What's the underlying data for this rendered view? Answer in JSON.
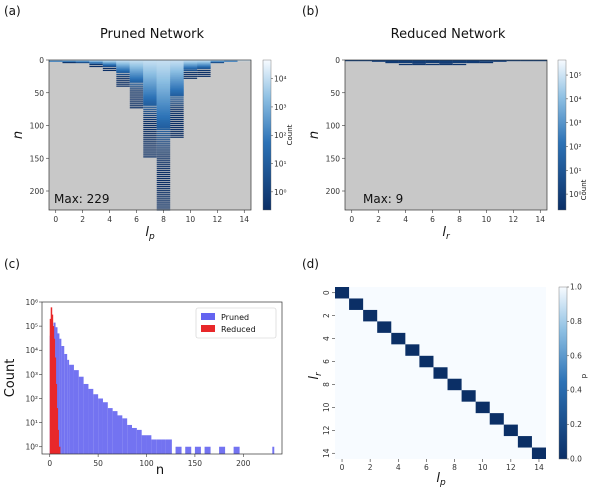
{
  "chart_data": [
    {
      "panel_label": "(a)",
      "type": "heatmap",
      "title": "Pruned Network",
      "xlabel": "l_p",
      "ylabel": "n",
      "xticks": [
        "0",
        "2",
        "4",
        "6",
        "8",
        "10",
        "12",
        "14"
      ],
      "yticks": [
        "0",
        "50",
        "100",
        "150",
        "200"
      ],
      "xlim": [
        -0.5,
        14.5
      ],
      "ylim": [
        229,
        0
      ],
      "annotation": "Max: 229",
      "colorbar_label": "Count",
      "colorbar_ticks": [
        "10⁰",
        "10¹",
        "10²",
        "10³",
        "10⁴"
      ],
      "colorbar_scale": "log",
      "max_n_by_lp": [
        3,
        5,
        6,
        10,
        18,
        40,
        75,
        150,
        229,
        120,
        30,
        25,
        6,
        3,
        2
      ]
    },
    {
      "panel_label": "(b)",
      "type": "heatmap",
      "title": "Reduced Network",
      "xlabel": "l_r",
      "ylabel": "n",
      "xticks": [
        "0",
        "2",
        "4",
        "6",
        "8",
        "10",
        "12",
        "14"
      ],
      "yticks": [
        "0",
        "50",
        "100",
        "150",
        "200"
      ],
      "xlim": [
        -0.5,
        14.5
      ],
      "ylim": [
        229,
        0
      ],
      "annotation": "Max: 9",
      "colorbar_label": "Count",
      "colorbar_ticks": [
        "10⁰",
        "10¹",
        "10²",
        "10³",
        "10⁴",
        "10⁵"
      ],
      "colorbar_scale": "log",
      "max_n_by_lr": [
        1,
        2,
        3,
        6,
        8,
        9,
        8,
        9,
        8,
        6,
        4,
        3,
        2,
        2,
        1
      ]
    },
    {
      "panel_label": "(c)",
      "type": "bar",
      "title": "",
      "xlabel": "n",
      "ylabel": "Count",
      "yscale": "log",
      "xticks": [
        "0",
        "50",
        "100",
        "150",
        "200"
      ],
      "yticks": [
        "10⁰",
        "10¹",
        "10²",
        "10³",
        "10⁴",
        "10⁵",
        "10⁶"
      ],
      "xlim": [
        -8,
        240
      ],
      "ylim": [
        0.5,
        1000000
      ],
      "legend_position": "top-right",
      "series": [
        {
          "name": "Pruned",
          "color": "#6464f0",
          "n": [
            0,
            2,
            4,
            6,
            8,
            10,
            12,
            15,
            18,
            20,
            25,
            30,
            35,
            40,
            45,
            50,
            55,
            60,
            65,
            70,
            75,
            80,
            85,
            90,
            95,
            100,
            105,
            110,
            115,
            120,
            130,
            140,
            150,
            160,
            175,
            190,
            230
          ],
          "counts": [
            40000,
            100000,
            140000,
            90000,
            50000,
            30000,
            15000,
            7000,
            4000,
            2500,
            1500,
            800,
            400,
            250,
            150,
            100,
            70,
            40,
            30,
            20,
            15,
            8,
            6,
            5,
            3,
            3,
            2,
            2,
            2,
            2,
            1,
            1,
            1,
            1,
            1,
            1,
            1
          ]
        },
        {
          "name": "Reduced",
          "color": "#e8282a",
          "n": [
            0,
            1,
            2,
            3,
            4,
            5,
            6,
            7,
            8,
            9
          ],
          "counts": [
            200000,
            600000,
            300000,
            100000,
            30000,
            5000,
            400,
            40,
            5,
            1
          ]
        }
      ]
    },
    {
      "panel_label": "(d)",
      "type": "heatmap",
      "title": "",
      "xlabel": "l_p",
      "ylabel": "l_r",
      "xticks": [
        "0",
        "2",
        "4",
        "6",
        "8",
        "10",
        "12",
        "14"
      ],
      "yticks": [
        "0",
        "2",
        "4",
        "6",
        "8",
        "10",
        "12",
        "14"
      ],
      "size": 15,
      "diagonal_value": 1.0,
      "off_diagonal_value": 0.0,
      "colorbar_label": "p",
      "colorbar_ticks": [
        "0.0",
        "0.2",
        "0.4",
        "0.6",
        "0.8",
        "1.0"
      ],
      "vlim": [
        0,
        1
      ]
    }
  ]
}
